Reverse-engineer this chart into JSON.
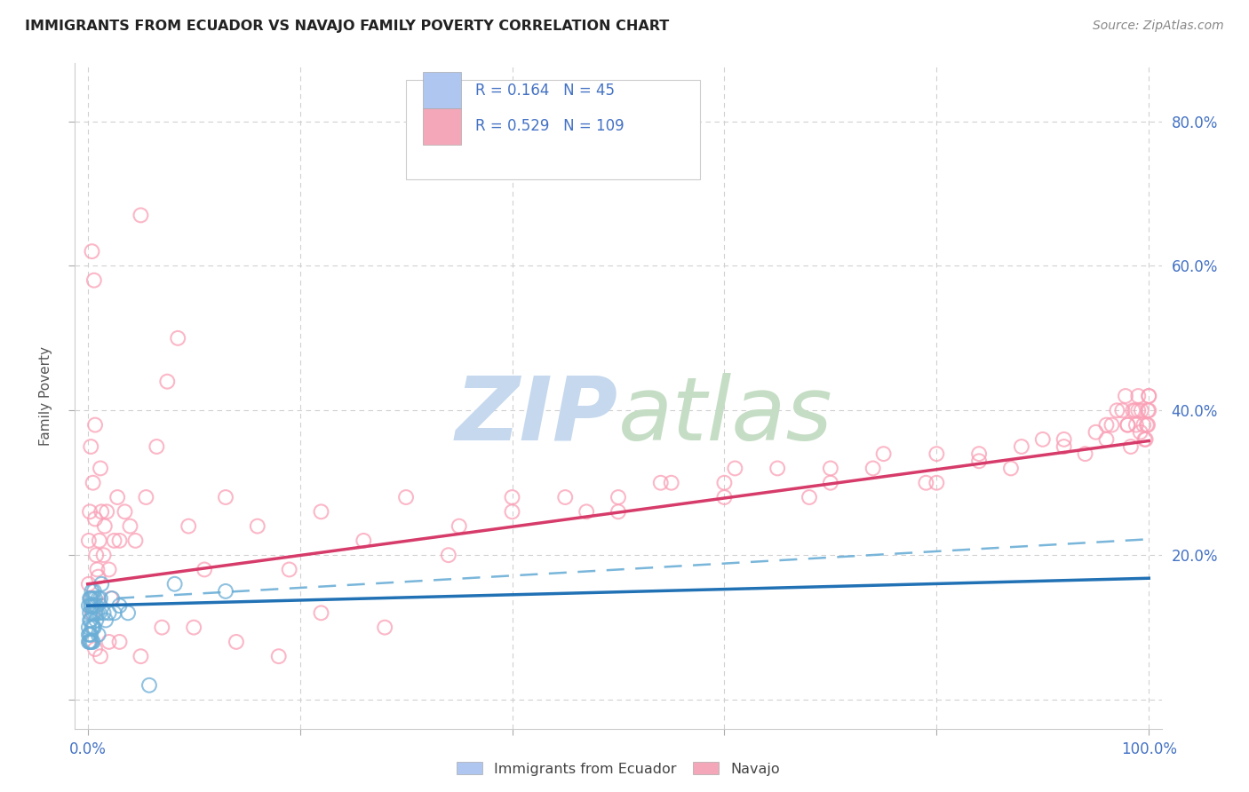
{
  "title": "IMMIGRANTS FROM ECUADOR VS NAVAJO FAMILY POVERTY CORRELATION CHART",
  "source": "Source: ZipAtlas.com",
  "ylabel": "Family Poverty",
  "y_ticks": [
    0.0,
    0.2,
    0.4,
    0.6,
    0.8
  ],
  "y_tick_labels_right": [
    "",
    "20.0%",
    "40.0%",
    "60.0%",
    "80.0%"
  ],
  "x_ticks": [
    0.0,
    0.2,
    0.4,
    0.6,
    0.8,
    1.0
  ],
  "x_tick_labels": [
    "0.0%",
    "",
    "",
    "",
    "",
    "100.0%"
  ],
  "legend_entry1_R": "0.164",
  "legend_entry1_N": "45",
  "legend_entry2_R": "0.529",
  "legend_entry2_N": "109",
  "legend_color1": "#aec6f0",
  "legend_color2": "#f4a7b9",
  "blue_scatter_color": "#6baed6",
  "pink_scatter_color": "#fa9fb5",
  "blue_line_color": "#2171b5",
  "pink_line_color": "#d63b6a",
  "dash_line_color": "#6baed6",
  "tick_color": "#4472c4",
  "grid_color": "#d0d0d0",
  "watermark_zip_color": "#c5d8ee",
  "watermark_atlas_color": "#c5ddc5",
  "blue_x": [
    0.001,
    0.001,
    0.001,
    0.001,
    0.002,
    0.002,
    0.002,
    0.002,
    0.002,
    0.003,
    0.003,
    0.003,
    0.003,
    0.003,
    0.004,
    0.004,
    0.004,
    0.004,
    0.005,
    0.005,
    0.005,
    0.005,
    0.006,
    0.006,
    0.006,
    0.007,
    0.007,
    0.008,
    0.008,
    0.009,
    0.01,
    0.01,
    0.011,
    0.012,
    0.013,
    0.015,
    0.017,
    0.02,
    0.023,
    0.025,
    0.03,
    0.038,
    0.058,
    0.082,
    0.13
  ],
  "blue_y": [
    0.13,
    0.1,
    0.09,
    0.08,
    0.14,
    0.12,
    0.11,
    0.09,
    0.08,
    0.14,
    0.13,
    0.11,
    0.09,
    0.08,
    0.15,
    0.13,
    0.1,
    0.08,
    0.14,
    0.12,
    0.1,
    0.08,
    0.15,
    0.13,
    0.1,
    0.14,
    0.12,
    0.13,
    0.11,
    0.12,
    0.14,
    0.09,
    0.12,
    0.14,
    0.16,
    0.12,
    0.11,
    0.12,
    0.14,
    0.12,
    0.13,
    0.12,
    0.02,
    0.16,
    0.15
  ],
  "pink_x": [
    0.001,
    0.001,
    0.002,
    0.003,
    0.003,
    0.004,
    0.005,
    0.006,
    0.007,
    0.007,
    0.008,
    0.009,
    0.01,
    0.011,
    0.012,
    0.013,
    0.015,
    0.016,
    0.018,
    0.02,
    0.022,
    0.025,
    0.028,
    0.03,
    0.035,
    0.04,
    0.045,
    0.05,
    0.055,
    0.065,
    0.075,
    0.085,
    0.095,
    0.11,
    0.13,
    0.16,
    0.19,
    0.22,
    0.26,
    0.3,
    0.35,
    0.4,
    0.45,
    0.5,
    0.55,
    0.6,
    0.65,
    0.7,
    0.75,
    0.8,
    0.84,
    0.87,
    0.9,
    0.92,
    0.94,
    0.95,
    0.96,
    0.965,
    0.97,
    0.975,
    0.978,
    0.98,
    0.983,
    0.985,
    0.987,
    0.988,
    0.99,
    0.992,
    0.993,
    0.995,
    0.997,
    0.998,
    0.999,
    1.0,
    1.0,
    0.002,
    0.004,
    0.007,
    0.012,
    0.02,
    0.03,
    0.05,
    0.07,
    0.1,
    0.14,
    0.18,
    0.22,
    0.28,
    0.34,
    0.4,
    0.47,
    0.54,
    0.61,
    0.68,
    0.74,
    0.79,
    0.84,
    0.88,
    0.92,
    0.96,
    0.98,
    0.99,
    0.996,
    0.999,
    1.0,
    0.5,
    0.6,
    0.7,
    0.8
  ],
  "pink_y": [
    0.16,
    0.22,
    0.26,
    0.14,
    0.35,
    0.62,
    0.3,
    0.58,
    0.25,
    0.38,
    0.2,
    0.18,
    0.17,
    0.22,
    0.32,
    0.26,
    0.2,
    0.24,
    0.26,
    0.18,
    0.14,
    0.22,
    0.28,
    0.22,
    0.26,
    0.24,
    0.22,
    0.67,
    0.28,
    0.35,
    0.44,
    0.5,
    0.24,
    0.18,
    0.28,
    0.24,
    0.18,
    0.26,
    0.22,
    0.28,
    0.24,
    0.26,
    0.28,
    0.28,
    0.3,
    0.3,
    0.32,
    0.3,
    0.34,
    0.3,
    0.33,
    0.32,
    0.36,
    0.35,
    0.34,
    0.37,
    0.38,
    0.38,
    0.4,
    0.4,
    0.42,
    0.38,
    0.35,
    0.4,
    0.4,
    0.38,
    0.42,
    0.37,
    0.4,
    0.38,
    0.36,
    0.38,
    0.4,
    0.42,
    0.42,
    0.08,
    0.12,
    0.07,
    0.06,
    0.08,
    0.08,
    0.06,
    0.1,
    0.1,
    0.08,
    0.06,
    0.12,
    0.1,
    0.2,
    0.28,
    0.26,
    0.3,
    0.32,
    0.28,
    0.32,
    0.3,
    0.34,
    0.35,
    0.36,
    0.36,
    0.38,
    0.4,
    0.36,
    0.38,
    0.4,
    0.26,
    0.28,
    0.32,
    0.34
  ],
  "blue_line_x0": 0.0,
  "blue_line_y0": 0.13,
  "blue_line_x1": 1.0,
  "blue_line_y1": 0.168,
  "pink_line_x0": 0.0,
  "pink_line_y0": 0.16,
  "pink_line_x1": 1.0,
  "pink_line_y1": 0.358,
  "dash_line_x0": 0.0,
  "dash_line_y0": 0.138,
  "dash_line_x1": 1.0,
  "dash_line_y1": 0.222
}
